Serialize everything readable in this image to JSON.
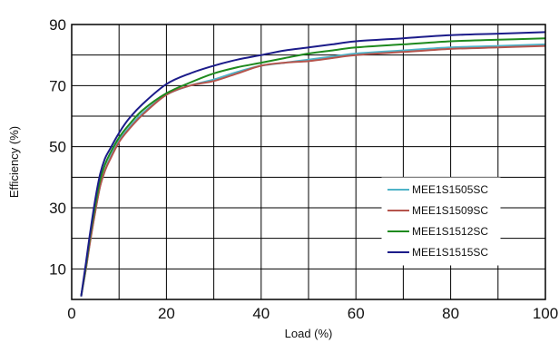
{
  "chart_data": {
    "type": "line",
    "title": "",
    "xlabel": "Load (%)",
    "ylabel": "Efficiency (%)",
    "xlim": [
      0,
      100
    ],
    "ylim": [
      0,
      90
    ],
    "x_ticks": [
      0,
      20,
      40,
      60,
      80,
      100
    ],
    "y_ticks": [
      10,
      30,
      50,
      70,
      90
    ],
    "grid": true,
    "legend_position": "bottom-right",
    "series": [
      {
        "name": "MEE1S1505SC",
        "color": "#4fb3c8",
        "x": [
          2,
          3,
          4,
          5,
          6,
          7,
          8,
          10,
          12,
          15,
          20,
          25,
          30,
          35,
          40,
          45,
          50,
          55,
          60,
          70,
          80,
          90,
          100
        ],
        "y": [
          1,
          10,
          20,
          29,
          37,
          42,
          46,
          52,
          56,
          61,
          67,
          70,
          72,
          74.5,
          76.5,
          77.5,
          78.5,
          79.5,
          80.5,
          81.5,
          82.5,
          83,
          83.5
        ]
      },
      {
        "name": "MEE1S1509SC",
        "color": "#b5544c",
        "x": [
          2,
          3,
          4,
          5,
          6,
          7,
          8,
          10,
          12,
          15,
          20,
          25,
          30,
          35,
          40,
          45,
          50,
          55,
          60,
          70,
          80,
          90,
          100
        ],
        "y": [
          1,
          10,
          20,
          29,
          37,
          42,
          45.5,
          51.5,
          55.5,
          60.5,
          67,
          70,
          71.5,
          74,
          76.5,
          77.5,
          78,
          79,
          80,
          81,
          82,
          82.5,
          83
        ]
      },
      {
        "name": "MEE1S1512SC",
        "color": "#1e8a1e",
        "x": [
          2,
          3,
          4,
          5,
          6,
          7,
          8,
          10,
          12,
          15,
          20,
          25,
          30,
          35,
          40,
          45,
          50,
          55,
          60,
          70,
          80,
          90,
          100
        ],
        "y": [
          1,
          11,
          22,
          31,
          39,
          44,
          47.5,
          53,
          57,
          62,
          67.5,
          71,
          74,
          76,
          77.5,
          79,
          80.5,
          81.5,
          82.5,
          83.5,
          84.5,
          85,
          85.5
        ]
      },
      {
        "name": "MEE1S1515SC",
        "color": "#1c1c8a",
        "x": [
          2,
          3,
          4,
          5,
          6,
          7,
          8,
          10,
          12,
          15,
          20,
          25,
          30,
          35,
          40,
          45,
          50,
          55,
          60,
          70,
          80,
          90,
          100
        ],
        "y": [
          1,
          12,
          23,
          33,
          41,
          46,
          49,
          54.5,
          59,
          64,
          70.5,
          74,
          76.5,
          78.5,
          80,
          81.5,
          82.5,
          83.5,
          84.5,
          85.5,
          86.5,
          87,
          87.5
        ]
      }
    ]
  }
}
